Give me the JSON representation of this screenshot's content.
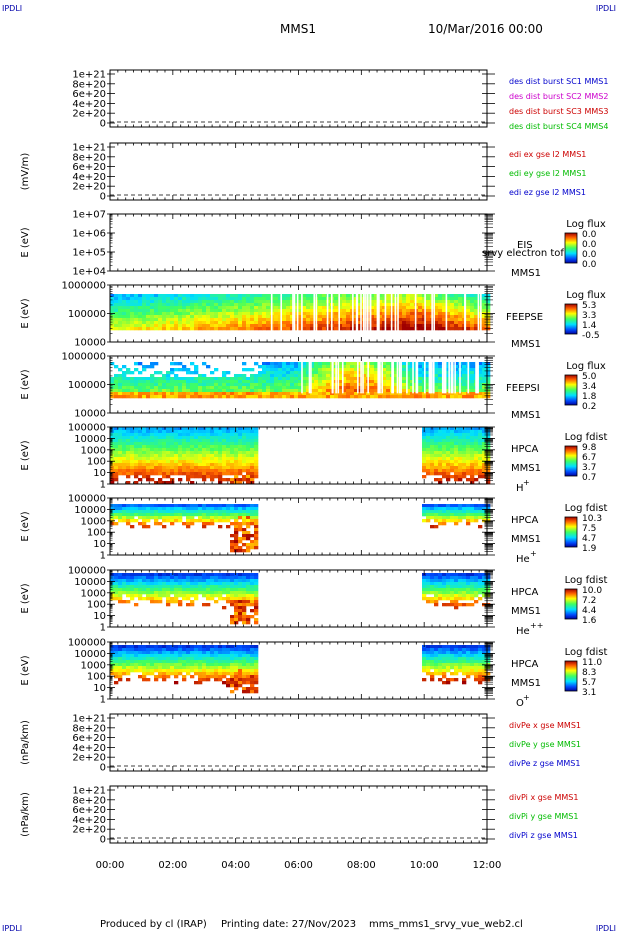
{
  "header": {
    "corner_label": "IPDLI",
    "mission": "MMS1",
    "datetime": "10/Mar/2016 00:00"
  },
  "footer": {
    "producer": "Produced by cl (IRAP)",
    "printing_date": "Printing date: 27/Nov/2023",
    "script_name": "mms_mms1_srvy_vue_web2.cl"
  },
  "x_axis": {
    "ticks": [
      "00:00",
      "02:00",
      "04:00",
      "06:00",
      "08:00",
      "10:00",
      "12:00"
    ],
    "hours": [
      0,
      2,
      4,
      6,
      8,
      10,
      12
    ]
  },
  "data_gap_hours": [
    4.65,
    9.85
  ],
  "chart_data": [
    {
      "id": "des-dist-burst",
      "type": "line",
      "ylabel": "",
      "yticks": [
        "1e+21",
        "8e+20",
        "6e+20",
        "4e+20",
        "2e+20",
        "0"
      ],
      "legend": [
        {
          "text": "des dist burst SC1 MMS1",
          "color": "#0000cc"
        },
        {
          "text": "des dist burst SC2 MMS2",
          "color": "#cc00cc"
        },
        {
          "text": "des dist burst SC3 MMS3",
          "color": "#cc0000"
        },
        {
          "text": "des dist burst SC4 MMS4",
          "color": "#00bb00"
        }
      ]
    },
    {
      "id": "edi-e-gse",
      "type": "line",
      "ylabel": "(mV/m)",
      "yticks": [
        "1e+21",
        "8e+20",
        "6e+20",
        "4e+20",
        "2e+20",
        "0"
      ],
      "legend": [
        {
          "text": "edi ex gse l2 MMS1",
          "color": "#cc0000"
        },
        {
          "text": "edi ey gse l2 MMS1",
          "color": "#00bb00"
        },
        {
          "text": "edi ez gse l2 MMS1",
          "color": "#0000cc"
        }
      ]
    },
    {
      "id": "eis",
      "type": "heatmap",
      "ylabel": "E (eV)",
      "yticks": [
        "1e+07",
        "1e+06",
        "1e+05",
        "1e+04"
      ],
      "labels": [
        "EIS",
        "MMS1"
      ],
      "overlay_text": "srvy electron tof",
      "cbar_title": "Log flux",
      "cbar_ticks": [
        "0.0",
        "0.0",
        "0.0",
        "0.0"
      ]
    },
    {
      "id": "feepse",
      "type": "heatmap",
      "ylabel": "E (eV)",
      "yticks": [
        "1000000",
        "100000",
        "10000"
      ],
      "labels": [
        "FEEPSE",
        "MMS1"
      ],
      "cbar_title": "Log flux",
      "cbar_ticks": [
        "5.3",
        "3.3",
        "1.4",
        "-0.5"
      ]
    },
    {
      "id": "feepsi",
      "type": "heatmap",
      "ylabel": "E (eV)",
      "yticks": [
        "1000000",
        "100000",
        "10000"
      ],
      "labels": [
        "FEEPSI",
        "MMS1"
      ],
      "cbar_title": "Log flux",
      "cbar_ticks": [
        "5.0",
        "3.4",
        "1.8",
        "0.2"
      ]
    },
    {
      "id": "hpca-h",
      "type": "heatmap",
      "ylabel": "E (eV)",
      "yticks": [
        "100000",
        "10000",
        "1000",
        "100",
        "10",
        "1"
      ],
      "labels": [
        "HPCA",
        "MMS1"
      ],
      "species": "H",
      "species_sup": "+",
      "cbar_title": "Log fdist",
      "cbar_ticks": [
        "9.8",
        "6.7",
        "3.7",
        "0.7"
      ]
    },
    {
      "id": "hpca-he",
      "type": "heatmap",
      "ylabel": "E (eV)",
      "yticks": [
        "100000",
        "10000",
        "1000",
        "100",
        "10",
        "1"
      ],
      "labels": [
        "HPCA",
        "MMS1"
      ],
      "species": "He",
      "species_sup": "+",
      "cbar_title": "Log fdist",
      "cbar_ticks": [
        "10.3",
        "7.5",
        "4.7",
        "1.9"
      ]
    },
    {
      "id": "hpca-hepp",
      "type": "heatmap",
      "ylabel": "E (eV)",
      "yticks": [
        "100000",
        "10000",
        "1000",
        "100",
        "10",
        "1"
      ],
      "labels": [
        "HPCA",
        "MMS1"
      ],
      "species": "He",
      "species_sup": "++",
      "cbar_title": "Log fdist",
      "cbar_ticks": [
        "10.0",
        "7.2",
        "4.4",
        "1.6"
      ]
    },
    {
      "id": "hpca-o",
      "type": "heatmap",
      "ylabel": "E (eV)",
      "yticks": [
        "100000",
        "10000",
        "1000",
        "100",
        "10",
        "1"
      ],
      "labels": [
        "HPCA",
        "MMS1"
      ],
      "species": "O",
      "species_sup": "+",
      "cbar_title": "Log fdist",
      "cbar_ticks": [
        "11.0",
        "8.3",
        "5.7",
        "3.1"
      ]
    },
    {
      "id": "divpe",
      "type": "line",
      "ylabel": "(nPa/km)",
      "yticks": [
        "1e+21",
        "8e+20",
        "6e+20",
        "4e+20",
        "2e+20",
        "0"
      ],
      "legend": [
        {
          "text": "divPe x gse MMS1",
          "color": "#cc0000"
        },
        {
          "text": "divPe y gse MMS1",
          "color": "#00bb00"
        },
        {
          "text": "divPe z gse MMS1",
          "color": "#0000cc"
        }
      ]
    },
    {
      "id": "divpi",
      "type": "line",
      "ylabel": "(nPa/km)",
      "yticks": [
        "1e+21",
        "8e+20",
        "6e+20",
        "4e+20",
        "2e+20",
        "0"
      ],
      "legend": [
        {
          "text": "divPi x gse MMS1",
          "color": "#cc0000"
        },
        {
          "text": "divPi y gse MMS1",
          "color": "#00bb00"
        },
        {
          "text": "divPi z gse MMS1",
          "color": "#0000cc"
        }
      ]
    }
  ]
}
